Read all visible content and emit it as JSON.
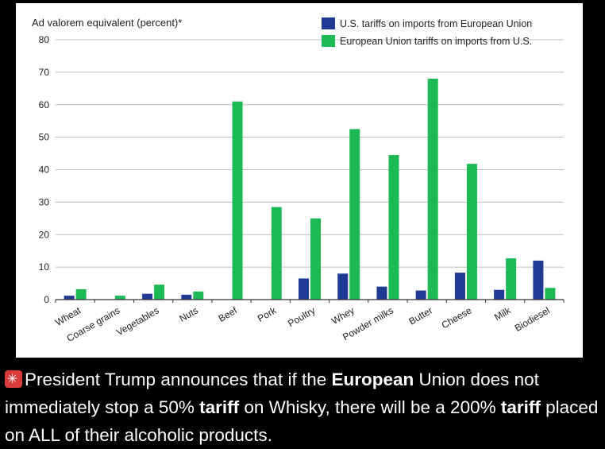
{
  "chart_data": {
    "type": "bar",
    "ylabel": "Ad valorem equivalent (percent)*",
    "ylim": [
      0,
      80
    ],
    "yticks": [
      0,
      10,
      20,
      30,
      40,
      50,
      60,
      70,
      80
    ],
    "grid": true,
    "legend_position": "top-right",
    "categories": [
      "Wheat",
      "Coarse grains",
      "Vegetables",
      "Nuts",
      "Beef",
      "Pork",
      "Poultry",
      "Whey",
      "Powder milks",
      "Butter",
      "Cheese",
      "Milk",
      "Biodiesel"
    ],
    "series": [
      {
        "name": "U.S. tariffs on imports from European Union",
        "color": "#1f3a93",
        "values": [
          1.2,
          0,
          1.8,
          1.5,
          0,
          0,
          6.5,
          8,
          4,
          2.8,
          8.3,
          3,
          12
        ]
      },
      {
        "name": "European Union tariffs on imports from U.S.",
        "color": "#1db954",
        "values": [
          3.2,
          1.2,
          4.6,
          2.5,
          61,
          28.5,
          25,
          52.5,
          44.5,
          68,
          41.8,
          12.7,
          3.6
        ]
      }
    ]
  },
  "caption": {
    "alert_icon": "rotating-light-icon",
    "seg1": "President Trump announces that if the ",
    "seg2": "European",
    "seg3": " Union does not immediately stop a 50% ",
    "seg4": "tariff",
    "seg5": " on Whisky, there will be a 200% ",
    "seg6": "tariff",
    "seg7": " placed on ALL of their alcoholic products."
  }
}
